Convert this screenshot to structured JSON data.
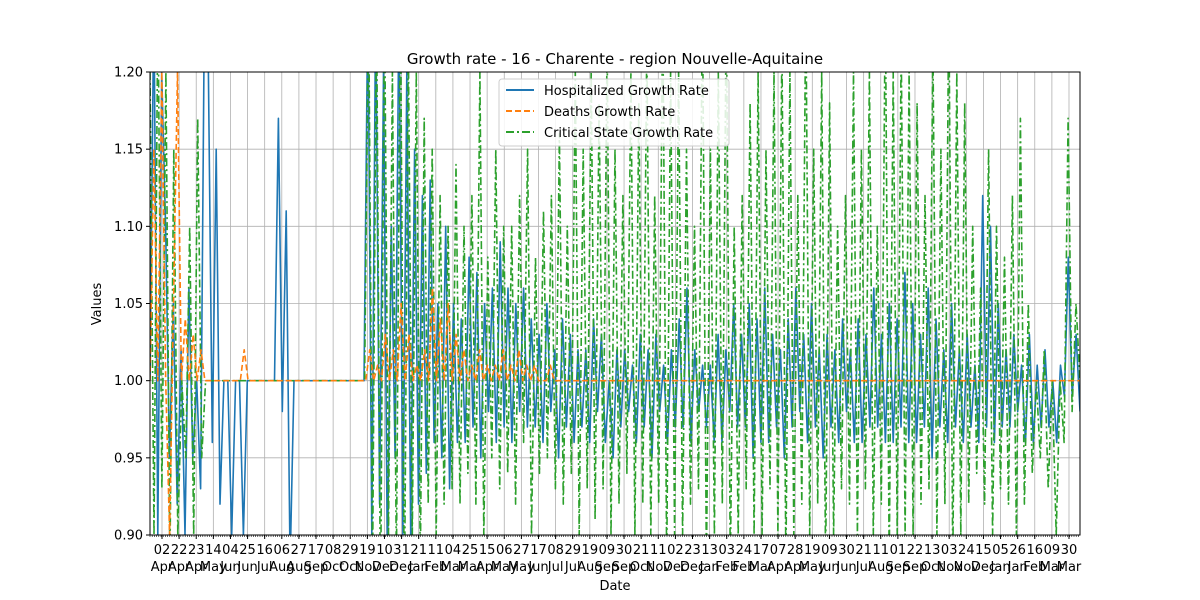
{
  "chart_data": {
    "type": "line",
    "title": "Growth rate - 16 - Charente - region Nouvelle-Aquitaine",
    "xlabel": "Date",
    "ylabel": "Values",
    "ylim": [
      0.9,
      1.2
    ],
    "yticks": [
      "0.90",
      "0.95",
      "1.00",
      "1.05",
      "1.10",
      "1.15",
      "1.20"
    ],
    "grid": true,
    "legend_position": "top-center",
    "x_tick_days": [
      "02",
      "22",
      "23",
      "14",
      "04",
      "25",
      "16",
      "06",
      "27",
      "17",
      "08",
      "29",
      "19",
      "10",
      "31",
      "21",
      "11",
      "04",
      "25",
      "15",
      "06",
      "27",
      "17",
      "08",
      "29",
      "19",
      "09",
      "30",
      "21",
      "11",
      "02",
      "23",
      "13",
      "03",
      "24",
      "17",
      "07",
      "28",
      "19",
      "09",
      "30",
      "21",
      "11",
      "01",
      "22",
      "13",
      "03",
      "24",
      "15",
      "05",
      "26",
      "16",
      "09",
      "30"
    ],
    "x_tick_months": [
      "Apr",
      "Apr",
      "Apr",
      "May",
      "Jun",
      "Jun",
      "Jul",
      "Aug",
      "Aug",
      "Sep",
      "Oct",
      "Oct",
      "Nov",
      "Dec",
      "Dec",
      "Jan",
      "Feb",
      "Mar",
      "Mar",
      "Apr",
      "May",
      "May",
      "Jun",
      "Jul",
      "Jul",
      "Aug",
      "Sep",
      "Sep",
      "Oct",
      "Nov",
      "Dec",
      "Dec",
      "Jan",
      "Feb",
      "Feb",
      "Mar",
      "Apr",
      "Apr",
      "May",
      "Jun",
      "Jun",
      "Jul",
      "Aug",
      "Sep",
      "Sep",
      "Oct",
      "Nov",
      "Nov",
      "Dec",
      "Jan",
      "Jan",
      "Feb",
      "Mar",
      "Mar"
    ],
    "series": [
      {
        "name": "Hospitalized Growth Rate",
        "color": "#1f77b4",
        "style": "solid",
        "values": [
          1.0,
          1.25,
          0.9,
          1.2,
          1.1,
          0.95,
          1.05,
          0.92,
          1.02,
          0.9,
          1.06,
          0.95,
          1.0,
          0.93,
          1.25,
          1.2,
          0.96,
          1.15,
          0.92,
          1.0,
          1.0,
          0.9,
          1.0,
          1.0,
          0.9,
          1.0,
          1.0,
          1.0,
          1.0,
          1.0,
          1.0,
          1.0,
          1.0,
          1.17,
          0.98,
          1.11,
          0.88,
          1.0,
          1.0,
          1.0,
          1.0,
          1.0,
          1.0,
          1.0,
          1.0,
          1.0,
          1.0,
          1.0,
          1.0,
          1.0,
          1.0,
          1.0,
          1.0,
          1.0,
          1.0,
          1.0,
          1.25,
          0.9,
          1.25,
          0.92,
          1.2,
          0.88,
          1.1,
          0.95,
          1.25,
          0.9,
          1.2,
          0.9,
          1.15,
          0.92,
          1.12,
          0.94,
          1.13,
          0.96,
          1.05,
          0.95,
          1.1,
          0.93,
          1.05,
          0.96,
          1.04,
          0.96,
          1.08,
          0.97,
          1.07,
          0.95,
          1.05,
          0.98,
          1.06,
          0.96,
          1.09,
          0.97,
          1.06,
          0.96,
          1.05,
          0.98,
          1.06,
          0.97,
          1.04,
          0.97,
          1.03,
          0.96,
          1.05,
          0.98,
          1.02,
          0.95,
          1.04,
          0.97,
          1.03,
          0.96,
          1.02,
          0.97,
          1.02,
          0.96,
          1.04,
          0.98,
          1.03,
          0.96,
          1.0,
          0.95,
          1.02,
          0.97,
          1.02,
          0.98,
          1.01,
          0.96,
          1.03,
          0.97,
          1.02,
          0.95,
          1.03,
          0.98,
          1.01,
          0.96,
          1.02,
          0.97,
          1.04,
          0.97,
          1.06,
          0.96,
          1.02,
          0.98,
          1.01,
          0.97,
          1.01,
          0.96,
          1.03,
          0.96,
          1.02,
          0.98,
          1.05,
          0.97,
          1.03,
          0.97,
          1.05,
          0.95,
          1.04,
          0.96,
          1.06,
          0.96,
          1.03,
          0.97,
          1.02,
          0.95,
          1.04,
          0.97,
          1.06,
          0.98,
          1.03,
          0.96,
          1.05,
          0.97,
          1.02,
          0.95,
          1.03,
          0.97,
          1.02,
          0.96,
          1.04,
          0.98,
          1.02,
          0.96,
          1.04,
          0.96,
          1.03,
          0.97,
          1.06,
          0.97,
          1.03,
          0.96,
          1.05,
          0.96,
          1.04,
          0.97,
          1.07,
          0.96,
          1.05,
          0.96,
          1.03,
          0.97,
          1.06,
          0.95,
          1.04,
          0.97,
          1.02,
          0.96,
          1.05,
          0.97,
          1.02,
          0.96,
          1.03,
          0.97,
          1.01,
          0.96,
          1.12,
          0.97,
          1.1,
          0.96,
          1.05,
          0.97,
          1.02,
          0.97,
          1.03,
          0.98,
          1.01,
          0.96,
          1.03,
          0.96,
          1.01,
          0.97,
          1.02,
          0.97,
          1.0,
          0.96,
          1.01,
          0.99,
          1.08,
          0.99,
          1.03,
          0.98
        ]
      },
      {
        "name": "Deaths Growth Rate",
        "color": "#ff7f0e",
        "style": "dashed",
        "values": [
          1.0,
          1.15,
          1.0,
          1.2,
          1.0,
          0.9,
          1.05,
          1.2,
          1.0,
          1.04,
          1.0,
          1.03,
          1.0,
          1.02,
          1.0,
          1.0,
          1.0,
          1.0,
          1.0,
          1.0,
          1.0,
          1.0,
          1.0,
          1.0,
          1.02,
          1.0,
          1.0,
          1.0,
          1.0,
          1.0,
          1.0,
          1.0,
          1.0,
          1.0,
          1.0,
          1.0,
          1.0,
          1.0,
          1.0,
          1.0,
          1.0,
          1.0,
          1.0,
          1.0,
          1.0,
          1.0,
          1.0,
          1.0,
          1.0,
          1.0,
          1.0,
          1.0,
          1.0,
          1.0,
          1.0,
          1.0,
          1.02,
          1.0,
          1.01,
          1.0,
          1.03,
          1.0,
          1.02,
          1.0,
          1.05,
          1.0,
          1.03,
          1.0,
          1.01,
          1.0,
          1.02,
          1.0,
          1.06,
          1.0,
          1.04,
          1.0,
          1.05,
          1.0,
          1.03,
          1.0,
          1.02,
          1.0,
          1.01,
          1.0,
          1.02,
          1.0,
          1.01,
          1.0,
          1.01,
          1.0,
          1.02,
          1.0,
          1.01,
          1.0,
          1.02,
          1.0,
          1.01,
          1.0,
          1.01,
          1.0,
          1.0,
          1.0,
          1.01,
          1.0,
          1.0,
          1.0,
          1.0,
          1.0,
          1.0,
          1.0,
          1.0,
          1.0,
          1.0,
          1.0,
          1.0,
          1.0,
          1.0,
          1.0,
          1.0,
          1.0,
          1.0,
          1.0,
          1.0,
          1.0,
          1.0,
          1.0,
          1.0,
          1.0,
          1.0,
          1.0,
          1.0,
          1.0,
          1.0,
          1.0,
          1.0,
          1.0,
          1.0,
          1.0,
          1.0,
          1.0,
          1.0,
          1.0,
          1.0,
          1.0,
          1.0,
          1.0,
          1.0,
          1.0,
          1.0,
          1.0,
          1.0,
          1.0,
          1.0,
          1.0,
          1.0,
          1.0,
          1.0,
          1.0,
          1.0,
          1.0,
          1.0,
          1.0,
          1.0,
          1.0,
          1.0,
          1.0,
          1.0,
          1.0,
          1.0,
          1.0,
          1.0,
          1.0,
          1.0,
          1.0,
          1.0,
          1.0,
          1.0,
          1.0,
          1.0,
          1.0,
          1.0,
          1.0,
          1.0,
          1.0,
          1.0,
          1.0,
          1.0,
          1.0,
          1.0,
          1.0,
          1.0,
          1.0,
          1.0,
          1.0,
          1.0,
          1.0,
          1.0,
          1.0,
          1.0,
          1.0,
          1.0,
          1.0,
          1.0,
          1.0,
          1.0,
          1.0,
          1.0,
          1.0,
          1.0,
          1.0,
          1.0,
          1.0,
          1.0,
          1.0,
          1.0,
          1.0,
          1.0,
          1.0,
          1.0,
          1.0,
          1.0,
          1.0,
          1.0,
          1.0,
          1.0,
          1.0,
          1.0,
          1.0,
          1.0,
          1.0,
          1.0,
          1.0,
          1.0,
          1.0,
          1.0,
          1.0,
          1.0,
          1.0
        ]
      },
      {
        "name": "Critical State Growth Rate",
        "color": "#2ca02c",
        "style": "dashdot",
        "values": [
          1.2,
          0.9,
          1.25,
          0.93,
          1.2,
          0.88,
          1.15,
          0.9,
          1.0,
          0.95,
          1.1,
          0.9,
          1.17,
          0.95,
          1.0,
          1.0,
          1.0,
          1.0,
          1.0,
          1.0,
          1.0,
          1.0,
          1.0,
          1.0,
          1.0,
          1.0,
          1.0,
          1.0,
          1.0,
          1.0,
          1.0,
          1.0,
          1.0,
          1.0,
          1.0,
          1.0,
          1.0,
          1.0,
          1.0,
          1.0,
          1.0,
          1.0,
          1.0,
          1.0,
          1.0,
          1.0,
          1.0,
          1.0,
          1.0,
          1.0,
          1.0,
          1.0,
          1.0,
          1.0,
          1.0,
          1.25,
          0.88,
          1.25,
          0.85,
          1.25,
          0.9,
          1.2,
          0.88,
          1.25,
          0.85,
          1.22,
          0.9,
          1.2,
          0.88,
          1.17,
          0.92,
          1.15,
          0.9,
          1.12,
          0.92,
          1.1,
          0.93,
          1.14,
          0.92,
          1.1,
          0.94,
          1.12,
          0.92,
          1.2,
          0.9,
          1.08,
          0.95,
          1.15,
          0.93,
          1.1,
          0.94,
          1.1,
          0.92,
          1.12,
          0.96,
          1.15,
          0.9,
          1.08,
          0.94,
          1.11,
          0.95,
          1.12,
          0.93,
          1.16,
          0.92,
          1.1,
          0.94,
          1.2,
          0.9,
          1.15,
          0.93,
          1.2,
          0.91,
          1.18,
          0.93,
          1.22,
          0.9,
          1.15,
          0.92,
          1.12,
          0.94,
          1.2,
          0.9,
          1.18,
          0.92,
          1.22,
          0.9,
          1.12,
          0.92,
          1.25,
          0.88,
          1.2,
          0.9,
          1.2,
          0.9,
          1.15,
          0.92,
          1.1,
          0.93,
          1.25,
          0.88,
          1.15,
          0.9,
          1.2,
          0.92,
          1.25,
          0.88,
          1.1,
          0.9,
          1.12,
          0.93,
          1.18,
          0.9,
          1.2,
          0.9,
          1.15,
          0.93,
          1.2,
          0.9,
          1.22,
          0.88,
          1.2,
          0.9,
          1.12,
          0.92,
          1.25,
          0.9,
          1.15,
          0.92,
          1.2,
          0.88,
          1.18,
          0.9,
          1.1,
          0.93,
          1.12,
          0.92,
          1.2,
          0.9,
          1.15,
          0.93,
          1.2,
          0.9,
          1.1,
          0.92,
          1.25,
          0.88,
          1.2,
          0.9,
          1.22,
          0.9,
          1.2,
          0.9,
          1.18,
          0.92,
          1.12,
          0.93,
          1.22,
          0.9,
          1.15,
          0.92,
          1.25,
          0.88,
          1.2,
          0.9,
          1.18,
          0.92,
          1.1,
          0.94,
          1.06,
          0.92,
          1.15,
          0.9,
          1.1,
          0.93,
          1.08,
          0.92,
          1.12,
          0.9,
          1.17,
          0.92,
          1.05,
          0.94,
          1.0,
          0.95,
          1.02,
          0.93,
          1.0,
          0.9,
          1.0,
          0.96,
          1.17,
          0.98,
          1.05,
          1.0
        ]
      }
    ]
  }
}
